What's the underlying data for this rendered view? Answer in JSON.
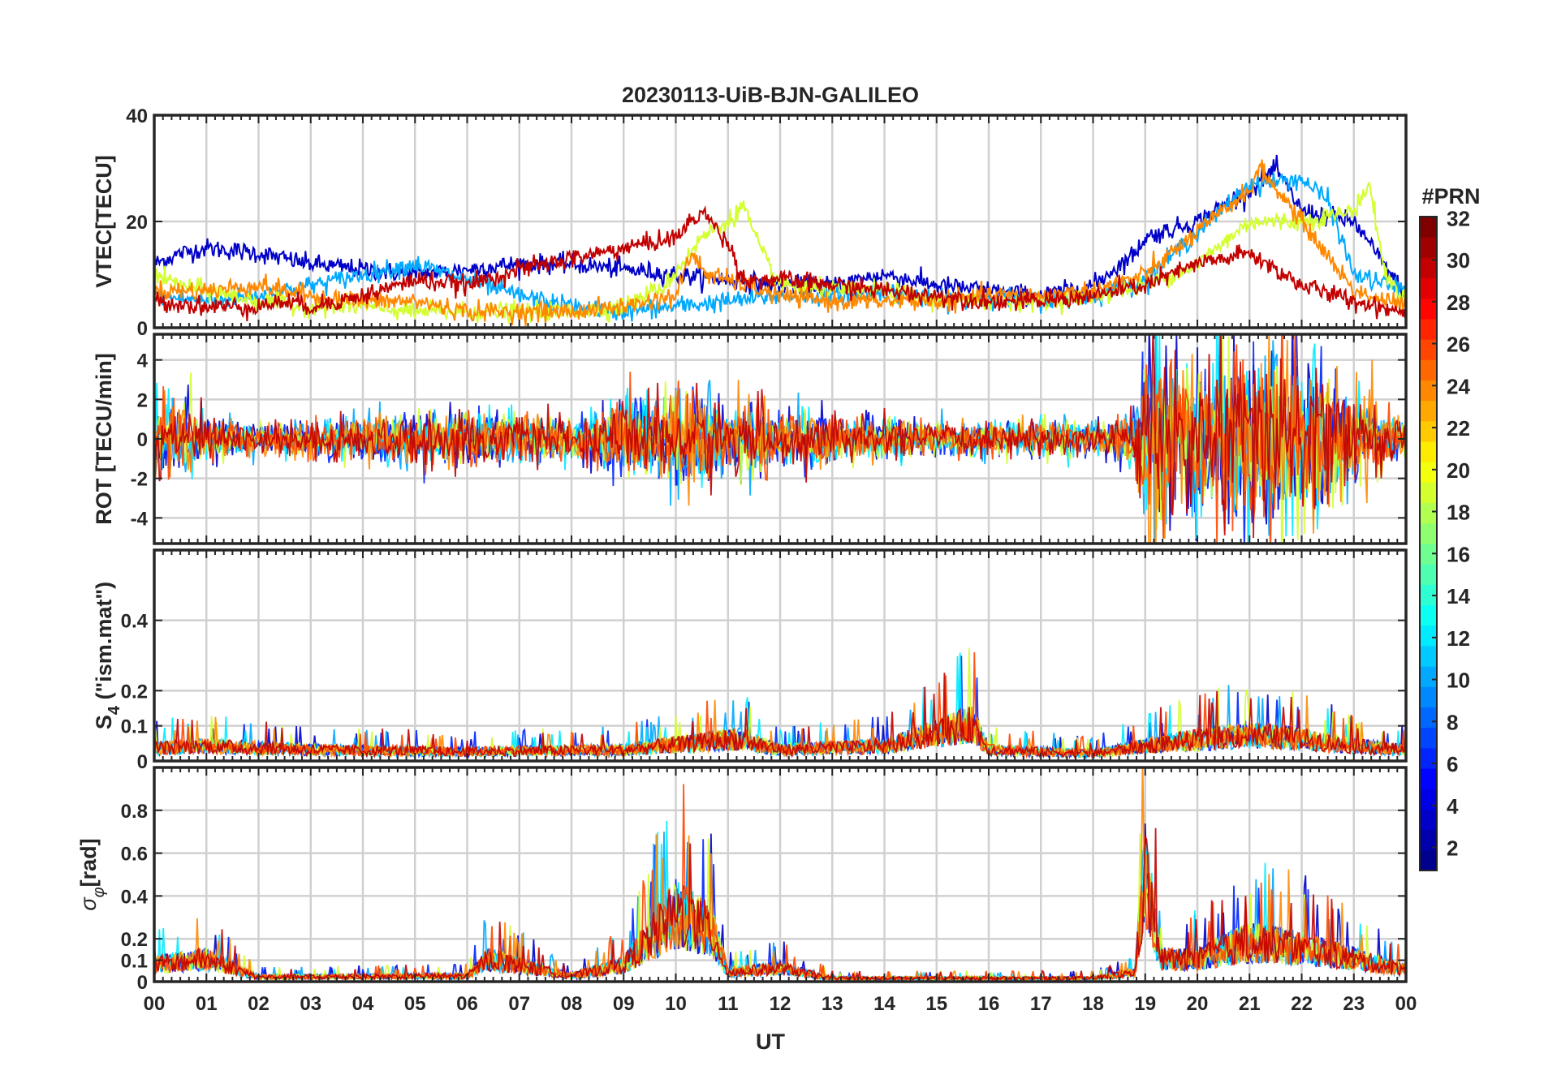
{
  "chart_data": {
    "title": "20230113-UiB-BJN-GALILEO",
    "type": "line",
    "xlabel": "UT",
    "xlim": [
      0,
      24
    ],
    "x_tick_labels": [
      "00",
      "01",
      "02",
      "03",
      "04",
      "05",
      "06",
      "07",
      "08",
      "09",
      "10",
      "11",
      "12",
      "13",
      "14",
      "15",
      "16",
      "17",
      "18",
      "19",
      "20",
      "21",
      "22",
      "23",
      "00"
    ],
    "grid": true,
    "colorbar": {
      "label": "#PRN",
      "range": [
        1,
        32
      ],
      "ticks": [
        "2",
        "4",
        "6",
        "8",
        "10",
        "12",
        "14",
        "16",
        "18",
        "20",
        "22",
        "24",
        "26",
        "28",
        "30",
        "32"
      ],
      "colormap": "jet",
      "colormap_stops": [
        "#00008f",
        "#0000ff",
        "#0080ff",
        "#00ffff",
        "#80ff80",
        "#ffff00",
        "#ff8000",
        "#ff0000",
        "#800000"
      ]
    },
    "panels": [
      {
        "id": "vtec",
        "ylabel": "VTEC[TECU]",
        "ylim": [
          0,
          40
        ],
        "yticks": [
          0,
          20,
          40
        ],
        "ytick_labels": [
          "0",
          "20",
          "40"
        ],
        "description_series": [
          {
            "prn": 3,
            "x": [
              0,
              0.5,
              1,
              2,
              3,
              4,
              5,
              6,
              7,
              8,
              9,
              10,
              11,
              12,
              13,
              14,
              15,
              16,
              17,
              18,
              18.8,
              19,
              20,
              21,
              21.5,
              22,
              23,
              24
            ],
            "y": [
              12,
              14,
              15,
              14,
              12,
              11,
              10,
              11,
              12,
              12,
              11,
              10,
              9,
              8,
              8,
              10,
              8,
              7,
              6,
              8,
              14,
              17,
              20,
              26,
              30,
              22,
              20,
              6
            ]
          },
          {
            "prn": 10,
            "x": [
              0,
              1,
              2,
              3,
              4,
              5,
              6,
              7,
              8,
              9,
              10,
              11,
              12,
              13,
              14,
              15,
              16,
              17,
              18,
              19,
              20,
              21,
              22,
              22.5,
              23,
              24
            ],
            "y": [
              6,
              5,
              6,
              8,
              10,
              12,
              9,
              6,
              4,
              3,
              4,
              5,
              6,
              6,
              7,
              5,
              6,
              5,
              6,
              9,
              18,
              27,
              28,
              24,
              10,
              7
            ]
          },
          {
            "prn": 19,
            "x": [
              0,
              0.5,
              1,
              2,
              3,
              4,
              5,
              6,
              7,
              8,
              9,
              9.8,
              10.5,
              11,
              11.3,
              11.6,
              12,
              13,
              14,
              15,
              16,
              17,
              18,
              19,
              20,
              21,
              22,
              23,
              23.3,
              23.6,
              24
            ],
            "y": [
              10,
              8,
              7,
              5,
              4,
              4,
              3,
              3,
              3,
              3,
              4,
              8,
              17,
              20,
              23,
              15,
              8,
              7,
              7,
              5,
              5,
              5,
              6,
              8,
              12,
              20,
              20,
              22,
              27,
              10,
              5
            ]
          },
          {
            "prn": 24,
            "x": [
              0,
              1,
              2,
              3,
              4,
              5,
              6,
              7,
              8,
              9,
              10,
              10.3,
              10.6,
              11,
              12,
              13,
              14,
              15,
              16,
              17,
              18,
              19,
              20,
              21,
              21.2,
              22,
              23,
              24
            ],
            "y": [
              7,
              7,
              8,
              6,
              5,
              5,
              3,
              3,
              3,
              4,
              6,
              14,
              10,
              9,
              6,
              5,
              5,
              5,
              6,
              6,
              7,
              10,
              18,
              26,
              30,
              20,
              7,
              4
            ]
          },
          {
            "prn": 30,
            "x": [
              0,
              1,
              2,
              2.5,
              3,
              3.5,
              4,
              5,
              6,
              7,
              8,
              9,
              10,
              10.5,
              11,
              11.3,
              12,
              13,
              14,
              15,
              16,
              17,
              18,
              19,
              19.5,
              20,
              21,
              22,
              23,
              24
            ],
            "y": [
              5,
              4,
              4,
              5,
              4,
              5,
              6,
              9,
              8,
              11,
              13,
              15,
              17,
              22,
              16,
              9,
              9,
              8,
              7,
              6,
              5,
              5,
              6,
              8,
              10,
              12,
              14,
              8,
              5,
              3
            ]
          }
        ]
      },
      {
        "id": "rot",
        "ylabel": "ROT [TECU/min]",
        "ylim": [
          -5.3,
          5.3
        ],
        "yticks": [
          -4,
          -2,
          0,
          2,
          4
        ],
        "ytick_labels": [
          "-4",
          "-2",
          "0",
          "2",
          "4"
        ],
        "typical_amplitude": [
          [
            0,
            2.5
          ],
          [
            1,
            1.2
          ],
          [
            2,
            0.8
          ],
          [
            6,
            1.5
          ],
          [
            8,
            1.0
          ],
          [
            10,
            2.5
          ],
          [
            11,
            2.0
          ],
          [
            13,
            1.2
          ],
          [
            15,
            0.8
          ],
          [
            18,
            0.9
          ],
          [
            18.8,
            1.5
          ],
          [
            19,
            5.3
          ],
          [
            20,
            4.0
          ],
          [
            21,
            5.0
          ],
          [
            22,
            4.5
          ],
          [
            23,
            2.5
          ],
          [
            24,
            1.0
          ]
        ]
      },
      {
        "id": "s4",
        "ylabel": "S4 (\"ism.mat\")",
        "ylabel_parts": [
          "S",
          "4",
          " (\"ism.mat\")"
        ],
        "ylim": [
          0,
          0.6
        ],
        "yticks": [
          0,
          0.1,
          0.2,
          0.4
        ],
        "ytick_labels": [
          "0",
          "0.1",
          "0.2",
          "0.4"
        ],
        "typical_level": [
          [
            0,
            0.07
          ],
          [
            1,
            0.08
          ],
          [
            3,
            0.06
          ],
          [
            6,
            0.05
          ],
          [
            9,
            0.06
          ],
          [
            11.2,
            0.12
          ],
          [
            12,
            0.06
          ],
          [
            14,
            0.08
          ],
          [
            15.7,
            0.2
          ],
          [
            16,
            0.06
          ],
          [
            18,
            0.04
          ],
          [
            19.5,
            0.1
          ],
          [
            21,
            0.14
          ],
          [
            22,
            0.12
          ],
          [
            23,
            0.08
          ],
          [
            24,
            0.06
          ]
        ]
      },
      {
        "id": "sigma_phi",
        "ylabel": "σφ[rad]",
        "ylabel_parts": [
          "σ",
          "φ",
          "[rad]"
        ],
        "ylim": [
          0,
          1.0
        ],
        "yticks": [
          0,
          0.1,
          0.2,
          0.4,
          0.6,
          0.8
        ],
        "ytick_labels": [
          "0",
          "0.1",
          "0.2",
          "0.4",
          "0.6",
          "0.8"
        ],
        "typical_level": [
          [
            0,
            0.15
          ],
          [
            1,
            0.2
          ],
          [
            2,
            0.04
          ],
          [
            6,
            0.05
          ],
          [
            6.4,
            0.2
          ],
          [
            8,
            0.05
          ],
          [
            9,
            0.15
          ],
          [
            10,
            0.6
          ],
          [
            10.7,
            0.45
          ],
          [
            11,
            0.08
          ],
          [
            12,
            0.12
          ],
          [
            13,
            0.03
          ],
          [
            18,
            0.03
          ],
          [
            18.8,
            0.08
          ],
          [
            19,
            0.95
          ],
          [
            19.3,
            0.2
          ],
          [
            20,
            0.2
          ],
          [
            21,
            0.35
          ],
          [
            22,
            0.3
          ],
          [
            23,
            0.2
          ],
          [
            24,
            0.1
          ]
        ]
      }
    ]
  }
}
